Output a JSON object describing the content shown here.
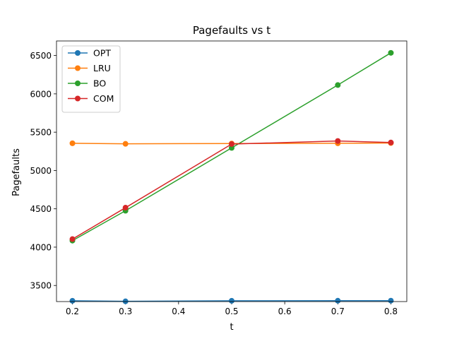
{
  "chart_data": {
    "type": "line",
    "title": "Pagefaults vs t",
    "xlabel": "t",
    "ylabel": "Pagefaults",
    "x": [
      0.2,
      0.3,
      0.5,
      0.7,
      0.8
    ],
    "xlim": [
      0.17,
      0.83
    ],
    "ylim": [
      3290,
      6690
    ],
    "xticks": [
      0.2,
      0.3,
      0.4,
      0.5,
      0.6,
      0.7,
      0.8
    ],
    "xtick_labels": [
      "0.2",
      "0.3",
      "0.4",
      "0.5",
      "0.6",
      "0.7",
      "0.8"
    ],
    "yticks": [
      3500,
      4000,
      4500,
      5000,
      5500,
      6000,
      6500
    ],
    "ytick_labels": [
      "3500",
      "4000",
      "4500",
      "5000",
      "5500",
      "6000",
      "6500"
    ],
    "grid": false,
    "legend_position": "top-left",
    "series": [
      {
        "name": "OPT",
        "color": "#1f77b4",
        "values": [
          3300,
          3293,
          3300,
          3301,
          3302
        ]
      },
      {
        "name": "LRU",
        "color": "#ff7f0e",
        "values": [
          5355,
          5348,
          5352,
          5355,
          5358
        ]
      },
      {
        "name": "BO",
        "color": "#2ca02c",
        "values": [
          4085,
          4475,
          5295,
          6115,
          6535
        ]
      },
      {
        "name": "COM",
        "color": "#d62728",
        "values": [
          4105,
          4515,
          5345,
          5385,
          5365
        ]
      }
    ]
  }
}
